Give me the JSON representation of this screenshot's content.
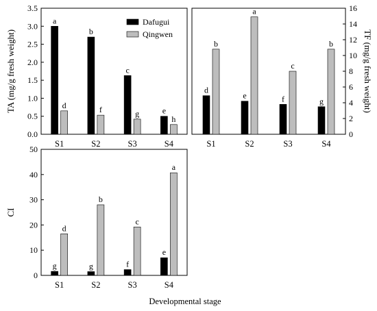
{
  "colors": {
    "dafugui": "#000000",
    "qingwen": "#bdbdbd"
  },
  "xlabel": "Developmental stage",
  "chart_data": [
    {
      "type": "bar",
      "categories": [
        "S1",
        "S2",
        "S3",
        "S4"
      ],
      "ylabel": "TA (mg/g fresh weight)",
      "ylim": [
        0,
        3.5
      ],
      "yticks": [
        "0.0",
        "0.5",
        "1.0",
        "1.5",
        "2.0",
        "2.5",
        "3.0",
        "3.5"
      ],
      "yaxis_side": "left",
      "legend": "top-right",
      "series": [
        {
          "name": "Dafugui",
          "values": [
            3.0,
            2.7,
            1.63,
            0.5
          ],
          "labels": [
            "a",
            "b",
            "c",
            "e"
          ]
        },
        {
          "name": "Qingwen",
          "values": [
            0.65,
            0.53,
            0.42,
            0.27
          ],
          "labels": [
            "d",
            "f",
            "g",
            "h"
          ]
        }
      ]
    },
    {
      "type": "bar",
      "categories": [
        "S1",
        "S2",
        "S3",
        "S4"
      ],
      "ylabel": "TF (mg/g fresh weight)",
      "ylim": [
        0,
        16
      ],
      "yticks": [
        "0",
        "2",
        "4",
        "6",
        "8",
        "10",
        "12",
        "14",
        "16"
      ],
      "yaxis_side": "right",
      "series": [
        {
          "name": "Dafugui",
          "values": [
            4.9,
            4.2,
            3.8,
            3.5
          ],
          "labels": [
            "d",
            "e",
            "f",
            "g"
          ]
        },
        {
          "name": "Qingwen",
          "values": [
            10.8,
            14.9,
            8.0,
            10.8
          ],
          "labels": [
            "b",
            "a",
            "c",
            "b"
          ]
        }
      ]
    },
    {
      "type": "bar",
      "categories": [
        "S1",
        "S2",
        "S3",
        "S4"
      ],
      "ylabel": "CI",
      "ylim": [
        0,
        50
      ],
      "yticks": [
        "0",
        "10",
        "20",
        "30",
        "40",
        "50"
      ],
      "yaxis_side": "left",
      "series": [
        {
          "name": "Dafugui",
          "values": [
            1.6,
            1.5,
            2.3,
            7.0
          ],
          "labels": [
            "g",
            "g",
            "f",
            "e"
          ]
        },
        {
          "name": "Qingwen",
          "values": [
            16.5,
            28.0,
            19.2,
            40.7
          ],
          "labels": [
            "d",
            "b",
            "c",
            "a"
          ]
        }
      ]
    }
  ]
}
